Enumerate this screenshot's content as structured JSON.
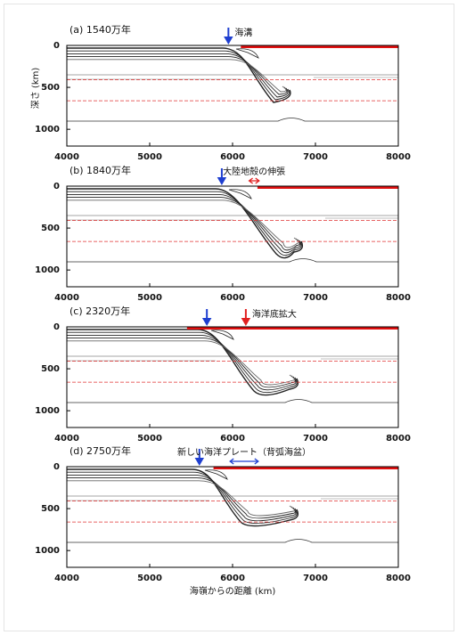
{
  "chart_data": [
    {
      "type": "section",
      "title": "(a) 1540万年",
      "ylabel": "深さ (km)",
      "xlim": [
        4000,
        8000
      ],
      "ylim": [
        0,
        1200
      ],
      "xticks": [
        4000,
        5000,
        6000,
        7000,
        8000
      ],
      "yticks": [
        0,
        500,
        1000
      ],
      "ref_lines": [
        410,
        660
      ],
      "ref_color": "#e03030",
      "surface_crust": [
        6100,
        8000
      ],
      "crust_color": "#e01010",
      "markers": [
        {
          "x": 5950,
          "color": "#1f3fd0",
          "label": "海溝"
        }
      ]
    },
    {
      "type": "section",
      "title": "(b) 1840万年",
      "xlim": [
        4000,
        8000
      ],
      "ylim": [
        0,
        1200
      ],
      "xticks": [
        4000,
        5000,
        6000,
        7000,
        8000
      ],
      "yticks": [
        0,
        500,
        1000
      ],
      "ref_lines": [
        410,
        660
      ],
      "ref_color": "#e03030",
      "surface_crust": [
        6300,
        8000
      ],
      "crust_color": "#e01010",
      "markers": [
        {
          "x": 5870,
          "color": "#1f3fd0"
        },
        {
          "x": [
            6200,
            6320
          ],
          "color": "#e02020",
          "label": "大陸地殻の伸張"
        }
      ]
    },
    {
      "type": "section",
      "title": "(c) 2320万年",
      "xlim": [
        4000,
        8000
      ],
      "ylim": [
        0,
        1200
      ],
      "xticks": [
        4000,
        5000,
        6000,
        7000,
        8000
      ],
      "yticks": [
        0,
        500,
        1000
      ],
      "ref_lines": [
        410,
        660
      ],
      "ref_color": "#e03030",
      "surface_crust": [
        5450,
        8000
      ],
      "crust_color": "#e01010",
      "markers": [
        {
          "x": 5690,
          "color": "#1f3fd0"
        },
        {
          "x": 6160,
          "color": "#e02020",
          "label": "海洋底拡大"
        }
      ]
    },
    {
      "type": "section",
      "title": "(d) 2750万年",
      "xlabel": "海嶺からの距離 (km)",
      "xlim": [
        4000,
        8000
      ],
      "ylim": [
        0,
        1200
      ],
      "xticks": [
        4000,
        5000,
        6000,
        7000,
        8000
      ],
      "yticks": [
        0,
        500,
        1000
      ],
      "ref_lines": [
        410,
        660
      ],
      "ref_color": "#e03030",
      "surface_crust": [
        5770,
        8000
      ],
      "crust_color": "#e01010",
      "markers": [
        {
          "x": 5600,
          "color": "#1f3fd0"
        },
        {
          "x": [
            5970,
            6310
          ],
          "color": "#1f3fd0",
          "label": "新しい海洋プレート（背弧海盆）"
        }
      ]
    }
  ]
}
